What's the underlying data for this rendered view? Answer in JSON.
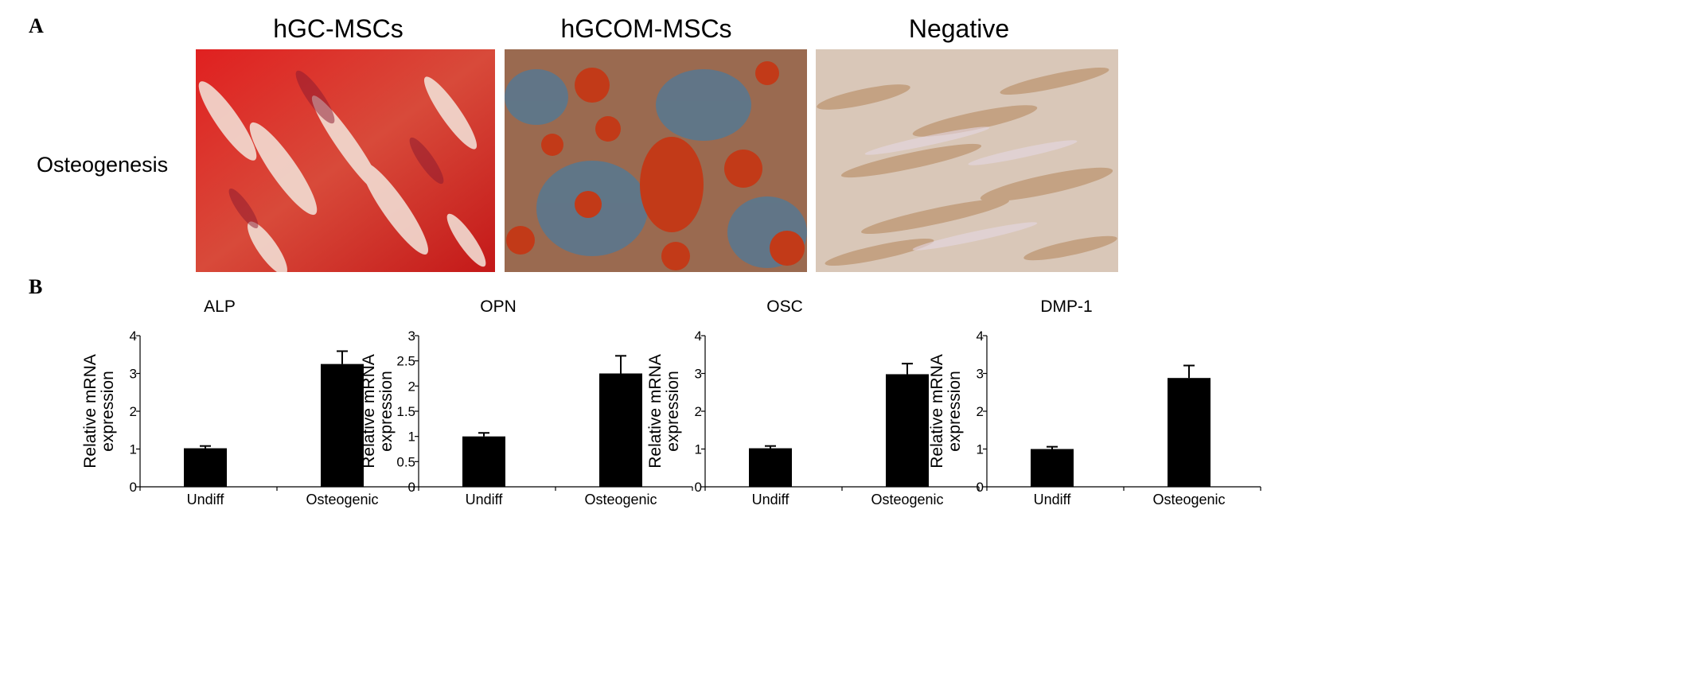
{
  "panel_a": {
    "letter": "A",
    "row_label": "Osteogenesis",
    "columns": [
      {
        "title": "hGC-MSCs",
        "image": "stained-micrograph-red"
      },
      {
        "title": "hGCOM-MSCs",
        "image": "stained-micrograph-red-blue"
      },
      {
        "title": "Negative",
        "image": "unstained-micrograph-beige"
      }
    ]
  },
  "panel_b": {
    "letter": "B"
  },
  "chart_data": [
    {
      "type": "bar",
      "title": "ALP",
      "ylabel": "Relative mRNA expression",
      "ylabel_lines": [
        "Relative mRNA",
        "expression"
      ],
      "categories": [
        "Undiff",
        "Osteogenic"
      ],
      "values": [
        1.02,
        3.25
      ],
      "errors": [
        0.06,
        0.34
      ],
      "ylim": [
        0,
        4
      ],
      "yticks": [
        0,
        1,
        2,
        3,
        4
      ],
      "ytick_labels": [
        "0",
        "1",
        "2",
        "3",
        "4"
      ],
      "bar_color": "#000000"
    },
    {
      "type": "bar",
      "title": "OPN",
      "ylabel": "Relative mRNA expression",
      "ylabel_lines": [
        "Relative mRNA",
        "expression"
      ],
      "categories": [
        "Undiff",
        "Osteogenic"
      ],
      "values": [
        1.0,
        2.25
      ],
      "errors": [
        0.07,
        0.35
      ],
      "ylim": [
        0,
        3
      ],
      "yticks": [
        0,
        0.5,
        1,
        1.5,
        2,
        2.5,
        3
      ],
      "ytick_labels": [
        "0",
        "0.5",
        "1",
        "1.5",
        "2",
        "2.5",
        "3"
      ],
      "bar_color": "#000000"
    },
    {
      "type": "bar",
      "title": "OSC",
      "ylabel": "Relative mRNA expression",
      "ylabel_lines": [
        "Relative mRNA",
        "expression"
      ],
      "categories": [
        "Undiff",
        "Osteogenic"
      ],
      "values": [
        1.02,
        2.98
      ],
      "errors": [
        0.06,
        0.28
      ],
      "ylim": [
        0,
        4
      ],
      "yticks": [
        0,
        1,
        2,
        3,
        4
      ],
      "ytick_labels": [
        "0",
        "1",
        "2",
        "3",
        "4"
      ],
      "bar_color": "#000000"
    },
    {
      "type": "bar",
      "title": "DMP-1",
      "ylabel": "Relative mRNA expression",
      "ylabel_lines": [
        "Relative mRNA",
        "expression"
      ],
      "categories": [
        "Undiff",
        "Osteogenic"
      ],
      "values": [
        1.0,
        2.88
      ],
      "errors": [
        0.06,
        0.33
      ],
      "ylim": [
        0,
        4
      ],
      "yticks": [
        0,
        1,
        2,
        3,
        4
      ],
      "ytick_labels": [
        "0",
        "1",
        "2",
        "3",
        "4"
      ],
      "bar_color": "#000000"
    }
  ]
}
